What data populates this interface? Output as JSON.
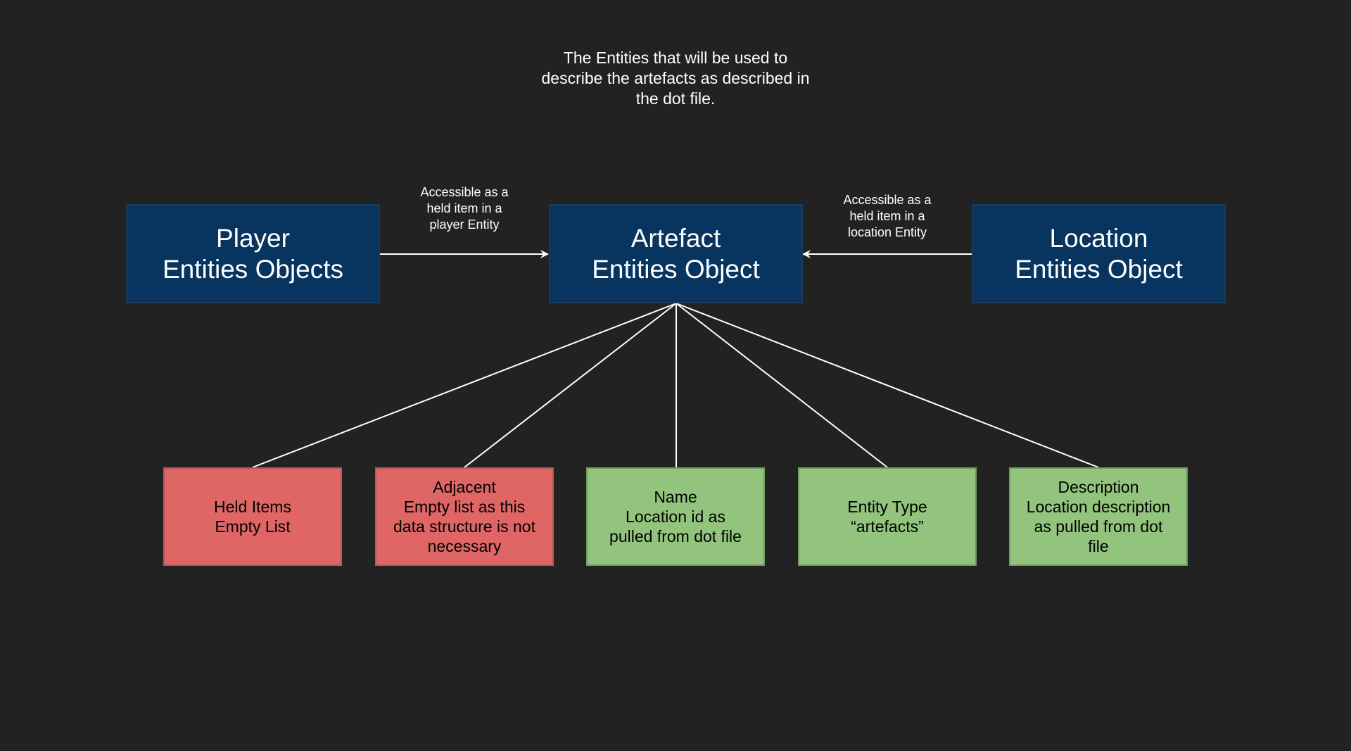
{
  "caption": "The Entities that will be used to\ndescribe the artefacts as described in\nthe dot file.",
  "nodes": {
    "player": "Player\nEntities Objects",
    "artefact": "Artefact\nEntities Object",
    "location": "Location\nEntities Object"
  },
  "edge_labels": {
    "player_to_artefact": "Accessible as a\nheld item in a\nplayer Entity",
    "location_to_artefact": "Accessible as a\nheld item in a\nlocation Entity"
  },
  "attributes": [
    {
      "text": "Held Items\nEmpty List",
      "color": "#e06666"
    },
    {
      "text": "Adjacent\nEmpty list as this\ndata structure is not\nnecessary",
      "color": "#e06666"
    },
    {
      "text": "Name\nLocation id as\npulled from dot file",
      "color": "#93c47d"
    },
    {
      "text": "Entity Type\n“artefacts”",
      "color": "#93c47d"
    },
    {
      "text": "Description\nLocation description\nas pulled from dot\nfile",
      "color": "#93c47d"
    }
  ],
  "colors": {
    "background": "#222222",
    "entity_box": "#083460",
    "unused_attribute": "#e06666",
    "used_attribute": "#93c47d",
    "line": "#ffffff"
  }
}
